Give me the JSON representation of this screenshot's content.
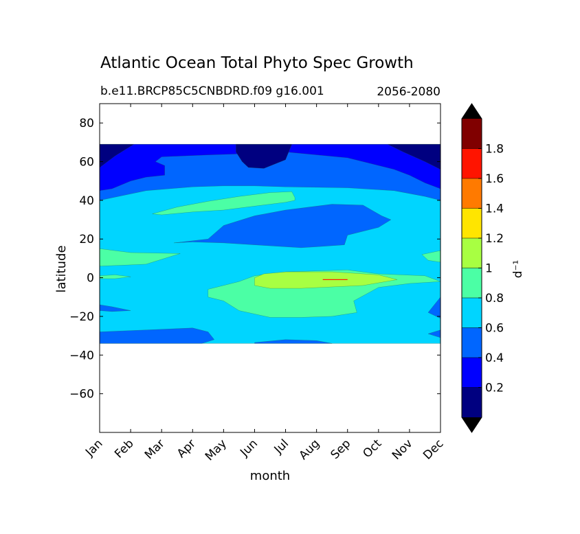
{
  "chart_data": {
    "type": "heatmap",
    "plot_kind": "filled-contour",
    "title": "Atlantic Ocean Total Phyto Spec Growth",
    "subtitle_left": "b.e11.BRCP85C5CNBDRD.f09 g16.001",
    "subtitle_right": "2056-2080",
    "xlabel": "month",
    "ylabel": "latitude",
    "xlim": [
      0,
      11
    ],
    "ylim": [
      -80,
      90
    ],
    "x_ticks": [
      {
        "value": 0,
        "label": "Jan"
      },
      {
        "value": 1,
        "label": "Feb"
      },
      {
        "value": 2,
        "label": "Mar"
      },
      {
        "value": 3,
        "label": "Apr"
      },
      {
        "value": 4,
        "label": "May"
      },
      {
        "value": 5,
        "label": "Jun"
      },
      {
        "value": 6,
        "label": "Jul"
      },
      {
        "value": 7,
        "label": "Aug"
      },
      {
        "value": 8,
        "label": "Sep"
      },
      {
        "value": 9,
        "label": "Oct"
      },
      {
        "value": 10,
        "label": "Nov"
      },
      {
        "value": 11,
        "label": "Dec"
      }
    ],
    "y_ticks": [
      {
        "value": 80,
        "label": "80"
      },
      {
        "value": 60,
        "label": "60"
      },
      {
        "value": 40,
        "label": "40"
      },
      {
        "value": 20,
        "label": "20"
      },
      {
        "value": 0,
        "label": "0"
      },
      {
        "value": -20,
        "label": "−20"
      },
      {
        "value": -40,
        "label": "−40"
      },
      {
        "value": -60,
        "label": "−60"
      }
    ],
    "data_lat_range": [
      -34,
      69
    ],
    "colorbar": {
      "label": "d⁻¹",
      "levels": [
        0.0,
        0.2,
        0.4,
        0.6,
        0.8,
        1.0,
        1.2,
        1.4,
        1.6,
        1.8,
        2.0
      ],
      "colors": [
        "#000080",
        "#0000ff",
        "#0066ff",
        "#00d5ff",
        "#4bffa5",
        "#a8ff42",
        "#ffe500",
        "#ff7a00",
        "#ff1400",
        "#800000"
      ],
      "extend_colors": {
        "under": "#000000",
        "over": "#000000"
      },
      "tick_labels": [
        {
          "value": 0.2,
          "label": "0.2"
        },
        {
          "value": 0.4,
          "label": "0.4"
        },
        {
          "value": 0.6,
          "label": "0.6"
        },
        {
          "value": 0.8,
          "label": "0.8"
        },
        {
          "value": 1.0,
          "label": "1"
        },
        {
          "value": 1.2,
          "label": "1.2"
        },
        {
          "value": 1.4,
          "label": "1.4"
        },
        {
          "value": 1.6,
          "label": "1.6"
        },
        {
          "value": 1.8,
          "label": "1.8"
        }
      ]
    },
    "regions": [
      {
        "name": "base-0.6-0.8",
        "color": "#00d5ff",
        "points": [
          [
            0,
            -34
          ],
          [
            11,
            -34
          ],
          [
            11,
            69
          ],
          [
            0,
            69
          ]
        ]
      },
      {
        "name": "north-0.4-0.6",
        "color": "#0066ff",
        "points": [
          [
            0,
            69
          ],
          [
            11,
            69
          ],
          [
            11,
            40
          ],
          [
            10.5,
            42
          ],
          [
            9.5,
            45
          ],
          [
            8,
            46.5
          ],
          [
            6,
            47
          ],
          [
            5,
            47.5
          ],
          [
            4,
            47.5
          ],
          [
            3,
            47
          ],
          [
            1.5,
            45
          ],
          [
            0,
            40
          ]
        ]
      },
      {
        "name": "north-0.2-0.4",
        "color": "#0000ff",
        "points": [
          [
            0,
            69
          ],
          [
            11,
            69
          ],
          [
            11,
            46
          ],
          [
            10.5,
            49
          ],
          [
            10,
            53
          ],
          [
            9.5,
            56
          ],
          [
            8.5,
            60
          ],
          [
            8,
            62
          ],
          [
            6,
            65
          ],
          [
            5.3,
            65
          ],
          [
            4.5,
            64
          ],
          [
            3.5,
            63.5
          ],
          [
            2,
            62.5
          ],
          [
            1.8,
            60
          ],
          [
            2.1,
            58
          ],
          [
            2.1,
            53
          ],
          [
            1.5,
            52
          ],
          [
            1,
            50
          ],
          [
            0.4,
            46
          ],
          [
            0,
            45
          ]
        ]
      },
      {
        "name": "north-0-0.2-left",
        "color": "#000080",
        "points": [
          [
            0,
            69
          ],
          [
            1.1,
            69
          ],
          [
            0.5,
            63
          ],
          [
            0,
            57
          ]
        ]
      },
      {
        "name": "north-0-0.2-right",
        "color": "#000080",
        "points": [
          [
            9.3,
            69
          ],
          [
            11,
            69
          ],
          [
            11,
            56
          ],
          [
            10.5,
            60
          ],
          [
            9.8,
            65
          ]
        ]
      },
      {
        "name": "north-0-0.2-jun",
        "color": "#000080",
        "points": [
          [
            4.4,
            69
          ],
          [
            6.2,
            69
          ],
          [
            6,
            61
          ],
          [
            5.3,
            56.5
          ],
          [
            4.8,
            57
          ],
          [
            4.6,
            60
          ],
          [
            4.4,
            65
          ]
        ]
      },
      {
        "name": "mid-low-patch",
        "color": "#0066ff",
        "points": [
          [
            2.4,
            18
          ],
          [
            3.5,
            20
          ],
          [
            4,
            27
          ],
          [
            5,
            32
          ],
          [
            6,
            35
          ],
          [
            7.5,
            38
          ],
          [
            8.5,
            37.5
          ],
          [
            9.1,
            32
          ],
          [
            9.4,
            30
          ],
          [
            9,
            26
          ],
          [
            8,
            22
          ],
          [
            7.9,
            17
          ],
          [
            7,
            16
          ],
          [
            6.5,
            15.5
          ],
          [
            5,
            17
          ],
          [
            4,
            18
          ],
          [
            3,
            18.5
          ]
        ]
      },
      {
        "name": "band-0.8-1-mid",
        "color": "#4bffa5",
        "points": [
          [
            1.7,
            33
          ],
          [
            2.5,
            36.5
          ],
          [
            3.5,
            39.5
          ],
          [
            4.5,
            42
          ],
          [
            5.5,
            44
          ],
          [
            6.2,
            44.5
          ],
          [
            6.3,
            41.5
          ],
          [
            6.3,
            40
          ],
          [
            6,
            39
          ],
          [
            5,
            37
          ],
          [
            4,
            35
          ],
          [
            3,
            34
          ],
          [
            2,
            32.5
          ]
        ]
      },
      {
        "name": "band-0.8-1-west",
        "color": "#4bffa5",
        "points": [
          [
            0,
            15
          ],
          [
            1,
            13
          ],
          [
            2.6,
            12.5
          ],
          [
            1.5,
            7
          ],
          [
            0.8,
            6.5
          ],
          [
            0,
            6
          ]
        ]
      },
      {
        "name": "band-0.8-1-east",
        "color": "#4bffa5",
        "points": [
          [
            11,
            14
          ],
          [
            10.4,
            12
          ],
          [
            10.6,
            9
          ],
          [
            11,
            8
          ]
        ]
      },
      {
        "name": "band-0.8-1-center",
        "color": "#4bffa5",
        "points": [
          [
            3.5,
            -6
          ],
          [
            4.5,
            -2
          ],
          [
            5,
            1
          ],
          [
            6,
            3
          ],
          [
            8,
            4
          ],
          [
            9,
            2
          ],
          [
            10.5,
            1
          ],
          [
            11,
            -2
          ],
          [
            10,
            -3
          ],
          [
            9,
            -5
          ],
          [
            8.2,
            -12
          ],
          [
            8.3,
            -18
          ],
          [
            7.5,
            -20
          ],
          [
            6.5,
            -20.5
          ],
          [
            5.5,
            -20.5
          ],
          [
            4.5,
            -17
          ],
          [
            4,
            -12
          ],
          [
            3.5,
            -10
          ]
        ]
      },
      {
        "name": "equator-west-small",
        "color": "#4bffa5",
        "points": [
          [
            0,
            1
          ],
          [
            0.5,
            1.5
          ],
          [
            1,
            0.5
          ],
          [
            0.5,
            -0.5
          ],
          [
            0,
            -0.5
          ]
        ]
      },
      {
        "name": "band-1-1.2-center",
        "color": "#a8ff42",
        "points": [
          [
            5,
            0
          ],
          [
            5.3,
            2
          ],
          [
            6,
            3
          ],
          [
            7.5,
            3
          ],
          [
            9,
            1.5
          ],
          [
            9.6,
            -1
          ],
          [
            8.5,
            -4
          ],
          [
            6.5,
            -5.5
          ],
          [
            5.5,
            -5.5
          ],
          [
            5,
            -4
          ]
        ]
      },
      {
        "name": "south-0.4-0.6-lower",
        "color": "#0066ff",
        "points": [
          [
            0,
            -28
          ],
          [
            1.5,
            -27
          ],
          [
            3,
            -26
          ],
          [
            3.5,
            -28
          ],
          [
            3.7,
            -32
          ],
          [
            3.3,
            -34
          ],
          [
            0,
            -34
          ]
        ]
      },
      {
        "name": "south-0.4-0.6-jun",
        "color": "#0066ff",
        "points": [
          [
            5,
            -33.5
          ],
          [
            6,
            -32
          ],
          [
            7,
            -32.5
          ],
          [
            7.5,
            -34
          ],
          [
            5,
            -34
          ]
        ]
      },
      {
        "name": "south-0.4-0.6-west",
        "color": "#0066ff",
        "points": [
          [
            0,
            -14
          ],
          [
            0.4,
            -15
          ],
          [
            1,
            -17
          ],
          [
            0.4,
            -17.5
          ],
          [
            0,
            -17
          ]
        ]
      },
      {
        "name": "south-0.4-0.6-east",
        "color": "#0066ff",
        "points": [
          [
            11,
            -10
          ],
          [
            11,
            -21
          ],
          [
            10.6,
            -18
          ],
          [
            10.8,
            -14
          ]
        ]
      },
      {
        "name": "south-0.4-0.6-east-lower",
        "color": "#0066ff",
        "points": [
          [
            11,
            -27
          ],
          [
            10.6,
            -29
          ],
          [
            11,
            -31
          ]
        ]
      }
    ],
    "highlight_segment": {
      "color": "#ff2000",
      "points": [
        [
          7.2,
          -1
        ],
        [
          8,
          -1
        ]
      ]
    }
  }
}
